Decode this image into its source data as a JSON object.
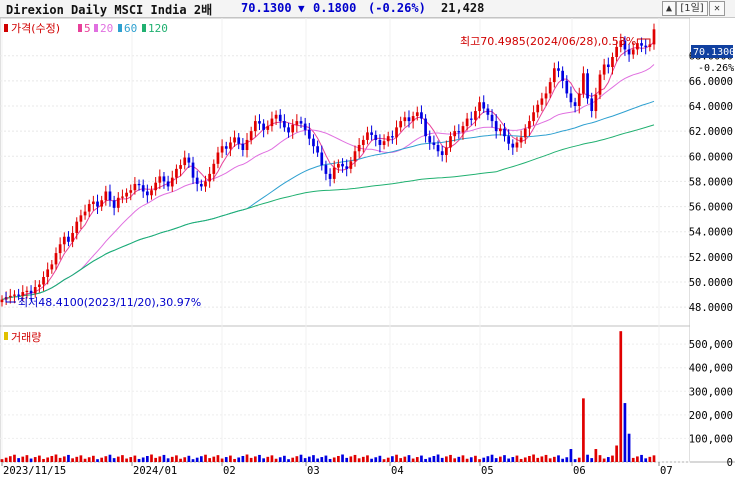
{
  "title_bar": {
    "name": "Direxion Daily MSCI India 2배",
    "price": "70.1300",
    "direction_icon": "down-triangle-icon",
    "change": "0.1800",
    "change_pct": "(-0.26%)",
    "volume": "21,428",
    "period_button": "[1일]",
    "close_button": "✕",
    "scroll_up": "▲"
  },
  "legend": {
    "price_label": "가격(수정)",
    "ma": [
      {
        "label": "5",
        "color": "#e8409a"
      },
      {
        "label": "20",
        "color": "#e070e0"
      },
      {
        "label": "60",
        "color": "#2ea0d0"
      },
      {
        "label": "120",
        "color": "#20b070"
      }
    ]
  },
  "volume_legend": {
    "label": "거래량"
  },
  "annotations": {
    "high": "최고70.4985(2024/06/28),0.53%",
    "low": "최저48.4100(2023/11/20),30.97%"
  },
  "price_box": {
    "last": "70.1300",
    "pct": "-0.26%"
  },
  "chart_data": {
    "type": "candlestick",
    "price_axis": {
      "min": 46.5,
      "max": 71.0,
      "ticks": [
        "48.0000",
        "50.0000",
        "52.0000",
        "54.0000",
        "56.0000",
        "58.0000",
        "60.0000",
        "62.0000",
        "64.0000",
        "66.0000",
        "68.0000"
      ]
    },
    "volume_axis": {
      "min": 0,
      "max": 560000,
      "ticks": [
        "0",
        "100,000",
        "200,000",
        "300,000",
        "400,000",
        "500,000"
      ]
    },
    "x_labels": [
      "2023/11/15",
      "2024/01",
      "02",
      "03",
      "04",
      "05",
      "06",
      "07"
    ],
    "close": [
      48.6,
      48.8,
      48.9,
      49.0,
      48.9,
      49.2,
      49.3,
      49.1,
      49.6,
      49.8,
      50.4,
      51.0,
      51.4,
      52.3,
      53.0,
      53.6,
      53.2,
      53.9,
      54.8,
      55.3,
      55.6,
      56.2,
      56.4,
      56.0,
      56.5,
      57.2,
      56.5,
      55.9,
      56.7,
      56.8,
      57.1,
      57.3,
      57.8,
      57.7,
      57.2,
      56.9,
      57.3,
      57.9,
      58.4,
      58.0,
      57.6,
      58.3,
      59.0,
      59.3,
      59.9,
      59.5,
      58.3,
      57.8,
      57.6,
      58.0,
      58.6,
      59.4,
      60.3,
      60.8,
      60.6,
      61.1,
      61.5,
      61.0,
      60.5,
      61.3,
      62.0,
      62.8,
      62.6,
      62.1,
      62.4,
      63.0,
      63.3,
      62.8,
      62.3,
      61.9,
      62.5,
      62.8,
      62.6,
      62.1,
      61.4,
      60.8,
      60.3,
      59.3,
      58.6,
      58.2,
      59.1,
      59.4,
      59.2,
      59.0,
      59.6,
      60.4,
      60.9,
      61.3,
      61.9,
      61.7,
      61.3,
      60.9,
      61.2,
      61.6,
      61.5,
      62.3,
      62.8,
      63.1,
      62.8,
      63.2,
      63.5,
      63.0,
      61.6,
      61.1,
      60.9,
      60.4,
      60.1,
      60.7,
      61.6,
      62.0,
      61.9,
      62.4,
      63.0,
      62.9,
      63.6,
      64.3,
      63.8,
      63.3,
      62.8,
      62.0,
      62.2,
      61.6,
      61.0,
      60.7,
      61.1,
      61.5,
      62.2,
      62.8,
      63.5,
      64.1,
      64.6,
      65.0,
      65.9,
      67.0,
      66.8,
      66.0,
      65.0,
      64.3,
      64.0,
      65.0,
      66.6,
      64.6,
      63.6,
      64.9,
      66.5,
      67.3,
      67.1,
      67.9,
      68.7,
      69.2,
      68.5,
      68.1,
      68.5,
      69.0,
      68.8,
      68.7,
      68.9,
      70.1
    ]
  }
}
